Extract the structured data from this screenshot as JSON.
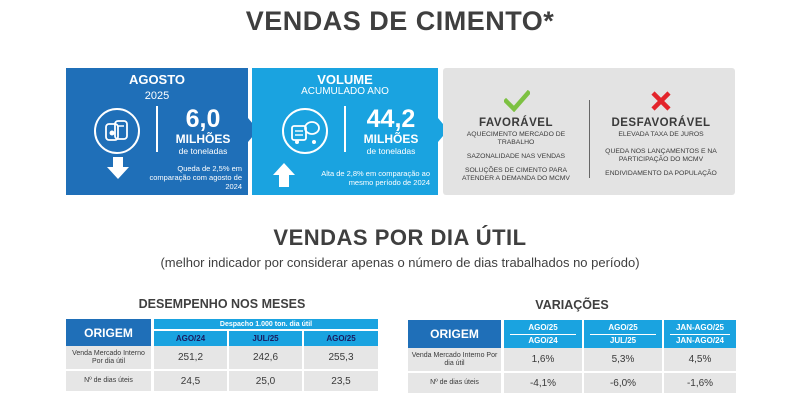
{
  "title": "VENDAS DE CIMENTO*",
  "colors": {
    "dark_blue": "#1f6fb8",
    "light_blue": "#1aa3e0",
    "green": "#7dc142",
    "red": "#e3242b",
    "gray_panel": "#e3e3e3"
  },
  "card_agosto": {
    "heading": "AGOSTO",
    "year": "2025",
    "value": "6,0",
    "unit_big": "MILHÕES",
    "unit_small": "de toneladas",
    "note": "Queda de 2,5% em comparação com agosto de 2024",
    "icon": "cement-bags-icon",
    "arrow": "arrow-down-icon"
  },
  "card_volume": {
    "heading": "VOLUME",
    "subheading": "ACUMULADO ANO",
    "value": "44,2",
    "unit_big": "MILHÕES",
    "unit_small": "de toneladas",
    "note": "Alta de 2,8% em comparação ao mesmo período de 2024",
    "icon": "cement-truck-icon",
    "arrow": "arrow-up-icon"
  },
  "favoravel": {
    "heading": "FAVORÁVEL",
    "icon": "check-icon",
    "items": [
      "AQUECIMENTO MERCADO DE TRABALHO",
      "SAZONALIDADE NAS VENDAS",
      "SOLUÇÕES DE CIMENTO PARA ATENDER A DEMANDA DO MCMV"
    ]
  },
  "desfavoravel": {
    "heading": "DESFAVORÁVEL",
    "icon": "x-icon",
    "items": [
      "ELEVADA TAXA DE JUROS",
      "QUEDA NOS LANÇAMENTOS E NA PARTICIPAÇÃO DO MCMV",
      "ENDIVIDAMENTO DA POPULAÇÃO"
    ]
  },
  "section2": {
    "title": "VENDAS POR DIA ÚTIL",
    "subtitle": "(melhor indicador por considerar apenas o número de dias trabalhados no período)"
  },
  "chart_data": [
    {
      "type": "table",
      "title": "DESEMPENHO NOS MESES",
      "corner_header": "ORIGEM",
      "group_header": "Despacho 1.000 ton. dia útil",
      "columns": [
        "AGO/24",
        "JUL/25",
        "AGO/25"
      ],
      "rows": [
        {
          "label": "Venda Mercado Interno Por dia útil",
          "values": [
            "251,2",
            "242,6",
            "255,3"
          ]
        },
        {
          "label": "Nº de dias úteis",
          "values": [
            "24,5",
            "25,0",
            "23,5"
          ]
        }
      ]
    },
    {
      "type": "table",
      "title": "VARIAÇÕES",
      "corner_header": "ORIGEM",
      "columns": [
        {
          "top": "AGO/25",
          "bottom": "AGO/24"
        },
        {
          "top": "AGO/25",
          "bottom": "JUL/25"
        },
        {
          "top": "JAN-AGO/25",
          "bottom": "JAN-AGO/24"
        }
      ],
      "rows": [
        {
          "label": "Venda Mercado Interno Por dia útil",
          "values": [
            "1,6%",
            "5,3%",
            "4,5%"
          ]
        },
        {
          "label": "Nº de dias úteis",
          "values": [
            "-4,1%",
            "-6,0%",
            "-1,6%"
          ]
        }
      ]
    }
  ]
}
